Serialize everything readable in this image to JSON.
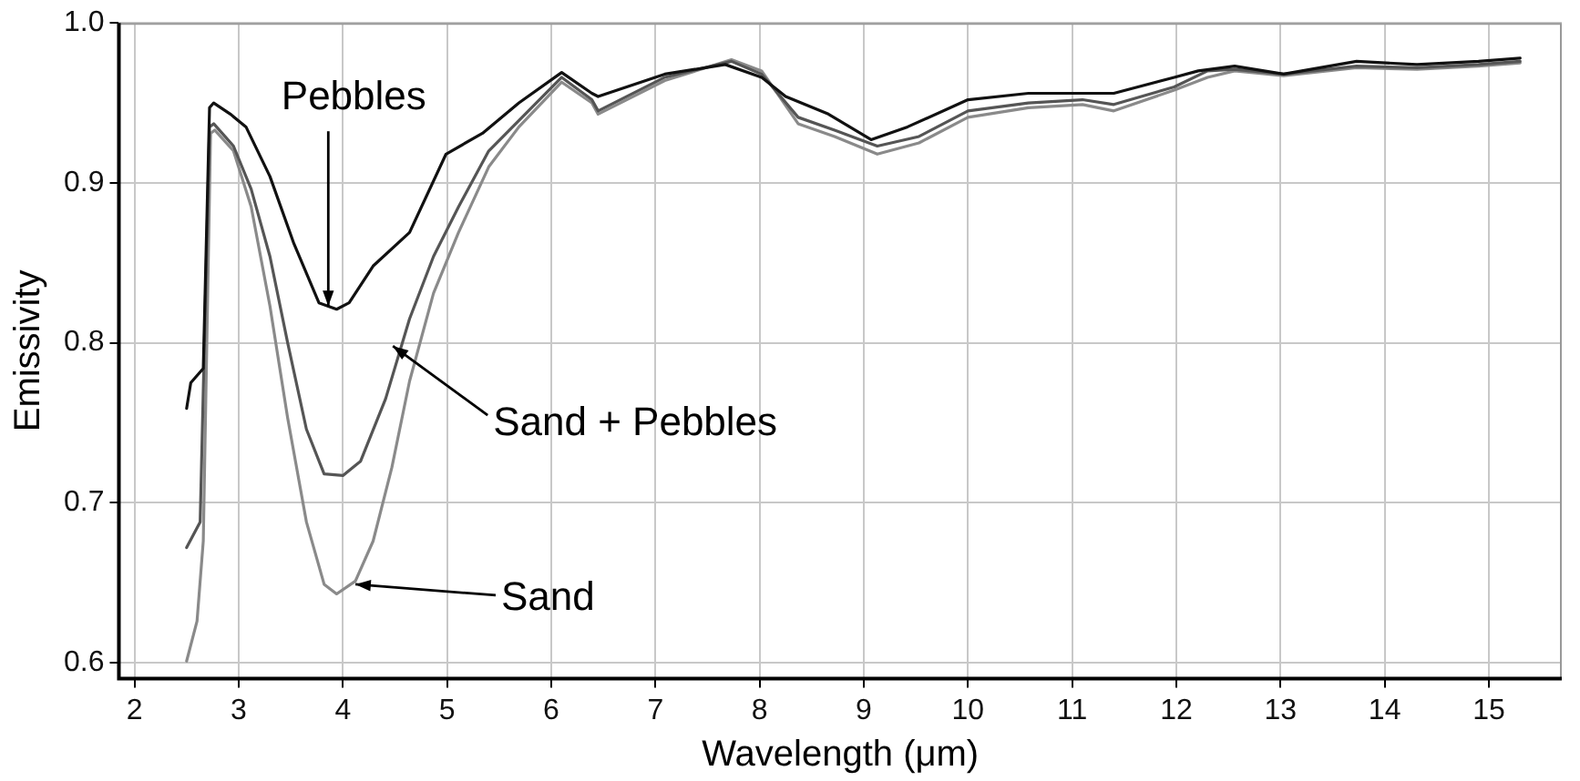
{
  "chart_data": {
    "type": "line",
    "xlabel": "Wavelength (μm)",
    "ylabel": "Emissivity",
    "xlim": [
      1.85,
      15.7
    ],
    "ylim": [
      0.59,
      1.0
    ],
    "xticks": [
      2,
      3,
      4,
      5,
      6,
      7,
      8,
      9,
      10,
      11,
      12,
      13,
      14,
      15
    ],
    "yticks": [
      0.6,
      0.7,
      0.8,
      0.9,
      {
        "value": 1.0,
        "label": "1.0"
      }
    ],
    "grid": true,
    "legend": false,
    "marker": "none",
    "line_style": "solid",
    "series": [
      {
        "color": "#111111",
        "x": [
          2.5,
          2.54,
          2.66,
          2.72,
          2.76,
          2.92,
          3.07,
          3.3,
          3.53,
          3.77,
          3.94,
          4.06,
          4.29,
          4.64,
          4.99,
          5.34,
          5.69,
          6.1,
          6.39,
          6.45,
          7.09,
          7.67,
          8.02,
          8.25,
          8.66,
          9.07,
          9.42,
          10.0,
          10.58,
          11.1,
          11.4,
          11.98,
          12.21,
          12.56,
          13.03,
          13.73,
          14.31,
          14.9,
          15.3
        ],
        "values": [
          0.759,
          0.775,
          0.784,
          0.947,
          0.95,
          0.943,
          0.935,
          0.904,
          0.862,
          0.825,
          0.821,
          0.825,
          0.848,
          0.869,
          0.918,
          0.931,
          0.95,
          0.969,
          0.956,
          0.954,
          0.968,
          0.974,
          0.966,
          0.954,
          0.943,
          0.927,
          0.935,
          0.952,
          0.956,
          0.956,
          0.956,
          0.966,
          0.97,
          0.973,
          0.968,
          0.976,
          0.974,
          0.976,
          0.978
        ]
      },
      {
        "color": "#555555",
        "x": [
          2.5,
          2.63,
          2.72,
          2.76,
          2.95,
          3.12,
          3.3,
          3.47,
          3.65,
          3.82,
          4.0,
          4.17,
          4.41,
          4.64,
          4.87,
          5.11,
          5.4,
          5.69,
          6.1,
          6.39,
          6.45,
          7.09,
          7.73,
          8.02,
          8.37,
          8.72,
          9.13,
          9.53,
          10.0,
          10.58,
          11.1,
          11.4,
          11.98,
          12.3,
          12.56,
          13.03,
          13.73,
          14.31,
          14.9,
          15.3
        ],
        "values": [
          0.672,
          0.688,
          0.935,
          0.937,
          0.923,
          0.896,
          0.854,
          0.8,
          0.746,
          0.718,
          0.717,
          0.726,
          0.765,
          0.815,
          0.854,
          0.885,
          0.92,
          0.939,
          0.966,
          0.952,
          0.945,
          0.966,
          0.976,
          0.968,
          0.941,
          0.933,
          0.923,
          0.929,
          0.945,
          0.95,
          0.952,
          0.949,
          0.96,
          0.97,
          0.971,
          0.968,
          0.973,
          0.972,
          0.974,
          0.976
        ]
      },
      {
        "color": "#8a8a8a",
        "x": [
          2.5,
          2.6,
          2.66,
          2.73,
          2.77,
          2.95,
          3.12,
          3.3,
          3.47,
          3.65,
          3.82,
          3.94,
          4.12,
          4.29,
          4.47,
          4.64,
          4.87,
          5.11,
          5.4,
          5.69,
          6.1,
          6.39,
          6.45,
          7.09,
          7.73,
          8.02,
          8.37,
          8.72,
          9.13,
          9.53,
          10.0,
          10.58,
          11.1,
          11.4,
          11.98,
          12.3,
          12.56,
          13.03,
          13.73,
          14.31,
          14.9,
          15.3
        ],
        "values": [
          0.601,
          0.626,
          0.676,
          0.931,
          0.933,
          0.92,
          0.885,
          0.823,
          0.753,
          0.688,
          0.649,
          0.643,
          0.651,
          0.676,
          0.722,
          0.776,
          0.831,
          0.869,
          0.91,
          0.935,
          0.963,
          0.95,
          0.943,
          0.964,
          0.977,
          0.97,
          0.937,
          0.929,
          0.918,
          0.925,
          0.941,
          0.947,
          0.949,
          0.945,
          0.958,
          0.966,
          0.97,
          0.967,
          0.972,
          0.971,
          0.973,
          0.975
        ]
      }
    ],
    "annotations": [
      {
        "text": "Pebbles",
        "x": 3.86,
        "y": 0.823
      },
      {
        "text": "Sand + Pebbles",
        "x": 4.48,
        "y": 0.798
      },
      {
        "text": "Sand",
        "x": 4.12,
        "y": 0.649
      }
    ]
  }
}
